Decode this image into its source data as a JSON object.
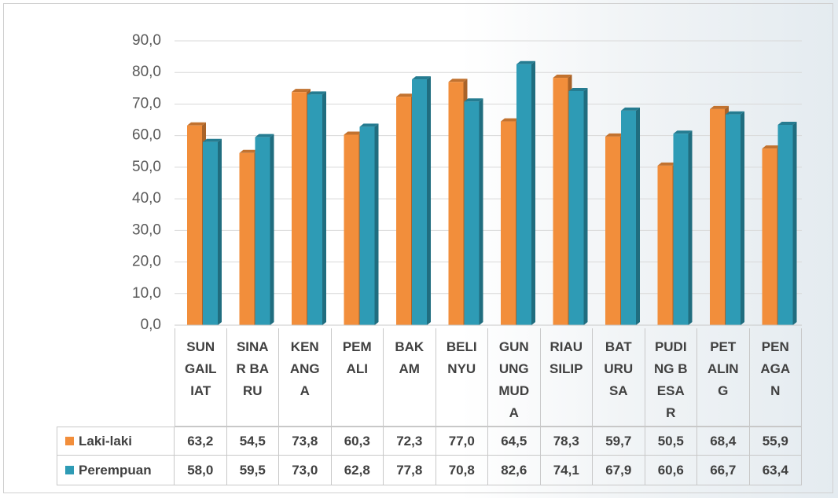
{
  "chart_data": {
    "type": "bar",
    "categories": [
      "SUNGAILIAT",
      "SINAR BARU",
      "KENANGA",
      "PEMALI",
      "BAKAM",
      "BELINYU",
      "GUNUNG MUDA",
      "RIAU SILIP",
      "BATURUSA",
      "PUDING BESAR",
      "PETALING",
      "PENAGAN"
    ],
    "series": [
      {
        "name": "Laki-laki",
        "color": "#f28e3b",
        "values": [
          63.2,
          54.5,
          73.8,
          60.3,
          72.3,
          77.0,
          64.5,
          78.3,
          59.7,
          50.5,
          68.4,
          55.9
        ],
        "value_labels": [
          "63,2",
          "54,5",
          "73,8",
          "60,3",
          "72,3",
          "77,0",
          "64,5",
          "78,3",
          "59,7",
          "50,5",
          "68,4",
          "55,9"
        ]
      },
      {
        "name": "Perempuan",
        "color": "#2e9bb5",
        "values": [
          58.0,
          59.5,
          73.0,
          62.8,
          77.8,
          70.8,
          82.6,
          74.1,
          67.9,
          60.6,
          66.7,
          63.4
        ],
        "value_labels": [
          "58,0",
          "59,5",
          "73,0",
          "62,8",
          "77,8",
          "70,8",
          "82,6",
          "74,1",
          "67,9",
          "60,6",
          "66,7",
          "63,4"
        ]
      }
    ],
    "ylim": [
      0,
      90
    ],
    "yticks": [
      {
        "value": 0,
        "label": "0,0"
      },
      {
        "value": 10,
        "label": "10,0"
      },
      {
        "value": 20,
        "label": "20,0"
      },
      {
        "value": 30,
        "label": "30,0"
      },
      {
        "value": 40,
        "label": "40,0"
      },
      {
        "value": 50,
        "label": "50,0"
      },
      {
        "value": 60,
        "label": "60,0"
      },
      {
        "value": 70,
        "label": "70,0"
      },
      {
        "value": 80,
        "label": "80,0"
      },
      {
        "value": 90,
        "label": "90,0"
      }
    ],
    "grid": true
  }
}
